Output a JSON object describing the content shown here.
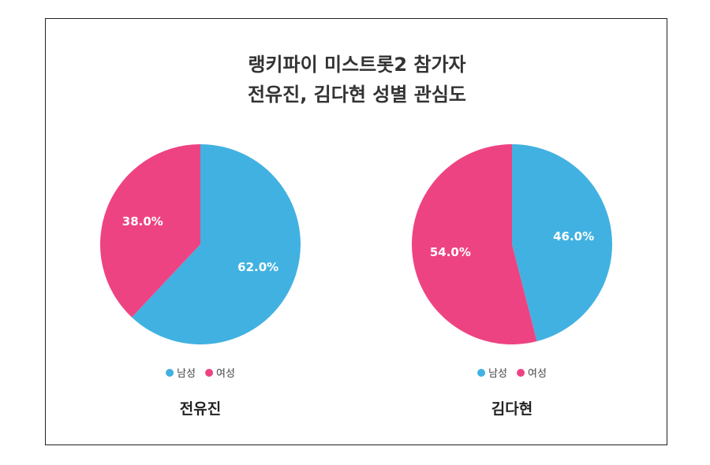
{
  "title_lines": [
    "랭키파이 미스트롯2 참가자",
    "전유진, 김다현 성별 관심도"
  ],
  "legend_labels": [
    "남성",
    "여성"
  ],
  "colors": {
    "male": "#41b1e1",
    "female": "#ee4382"
  },
  "chart_data": [
    {
      "type": "pie",
      "name": "전유진",
      "labels": [
        "남성",
        "여성"
      ],
      "values": [
        62.0,
        38.0
      ],
      "value_labels": [
        "62.0%",
        "38.0%"
      ],
      "legend_position": "bottom"
    },
    {
      "type": "pie",
      "name": "김다현",
      "labels": [
        "남성",
        "여성"
      ],
      "values": [
        46.0,
        54.0
      ],
      "value_labels": [
        "46.0%",
        "54.0%"
      ],
      "legend_position": "bottom"
    }
  ]
}
